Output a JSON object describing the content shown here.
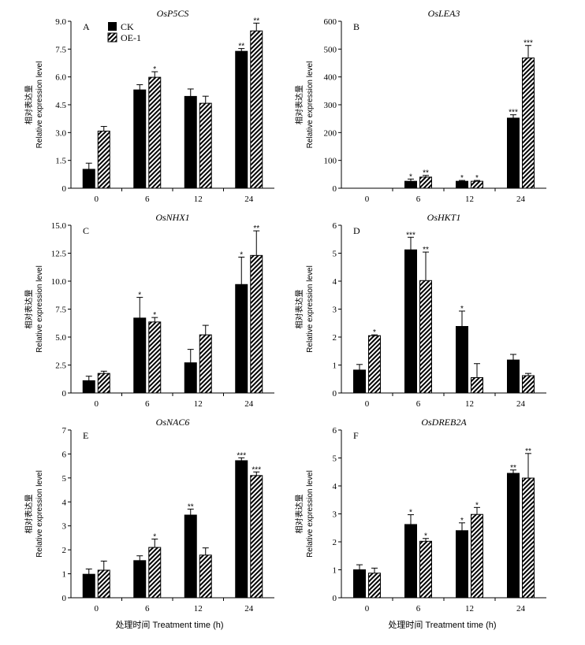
{
  "x_axis_label": "处理时间 Treatment time (h)",
  "y_axis_label_cn": "相对表达量",
  "y_axis_label_en": "Relative expression level",
  "legend": [
    "CK",
    "OE-1"
  ],
  "colors": {
    "ck": "#000000",
    "oe": "hatch"
  },
  "chart_data": [
    {
      "type": "bar",
      "panel": "A",
      "title": "OsP5CS",
      "categories": [
        "0",
        "6",
        "12",
        "24"
      ],
      "yticks": [
        "0",
        "1.5",
        "3.0",
        "4.5",
        "6.0",
        "7.5",
        "9.0"
      ],
      "ylim": [
        0,
        9
      ],
      "series": [
        {
          "name": "CK",
          "values": [
            1.02,
            5.3,
            4.95,
            7.38
          ],
          "errors": [
            0.33,
            0.28,
            0.4,
            0.15
          ],
          "sig": [
            "",
            "",
            "",
            "**"
          ]
        },
        {
          "name": "OE-1",
          "values": [
            3.08,
            5.98,
            4.58,
            8.48
          ],
          "errors": [
            0.25,
            0.3,
            0.38,
            0.42
          ],
          "sig": [
            "",
            "*",
            "",
            "**"
          ]
        }
      ]
    },
    {
      "type": "bar",
      "panel": "B",
      "title": "OsLEA3",
      "categories": [
        "0",
        "6",
        "12",
        "24"
      ],
      "yticks": [
        "0",
        "100",
        "200",
        "300",
        "400",
        "500",
        "600"
      ],
      "ylim": [
        0,
        600
      ],
      "series": [
        {
          "name": "CK",
          "values": [
            0,
            25,
            25,
            252
          ],
          "errors": [
            0,
            8,
            3,
            12
          ],
          "sig": [
            "",
            "*",
            "*",
            "***"
          ]
        },
        {
          "name": "OE-1",
          "values": [
            0,
            40,
            25,
            468
          ],
          "errors": [
            0,
            6,
            3,
            45
          ],
          "sig": [
            "",
            "**",
            "*",
            "***"
          ]
        }
      ]
    },
    {
      "type": "bar",
      "panel": "C",
      "title": "OsNHX1",
      "categories": [
        "0",
        "6",
        "12",
        "24"
      ],
      "yticks": [
        "0",
        "2.5",
        "5.0",
        "7.5",
        "10.0",
        "12.5",
        "15.0"
      ],
      "ylim": [
        0,
        15
      ],
      "series": [
        {
          "name": "CK",
          "values": [
            1.1,
            6.7,
            2.7,
            9.7
          ],
          "errors": [
            0.4,
            1.85,
            1.2,
            2.45
          ],
          "sig": [
            "",
            "*",
            "",
            "*"
          ]
        },
        {
          "name": "OE-1",
          "values": [
            1.75,
            6.35,
            5.2,
            12.3
          ],
          "errors": [
            0.2,
            0.4,
            0.85,
            2.2
          ],
          "sig": [
            "",
            "*",
            "",
            "**"
          ]
        }
      ]
    },
    {
      "type": "bar",
      "panel": "D",
      "title": "OsHKT1",
      "categories": [
        "0",
        "6",
        "12",
        "24"
      ],
      "yticks": [
        "0",
        "1",
        "2",
        "3",
        "4",
        "5",
        "6"
      ],
      "ylim": [
        0,
        6
      ],
      "series": [
        {
          "name": "CK",
          "values": [
            0.82,
            5.12,
            2.38,
            1.18
          ],
          "errors": [
            0.2,
            0.45,
            0.55,
            0.2
          ],
          "sig": [
            "",
            "***",
            "*",
            ""
          ]
        },
        {
          "name": "OE-1",
          "values": [
            2.05,
            4.02,
            0.55,
            0.62
          ],
          "errors": [
            0.03,
            1.02,
            0.5,
            0.08
          ],
          "sig": [
            "*",
            "**",
            "",
            ""
          ]
        }
      ]
    },
    {
      "type": "bar",
      "panel": "E",
      "title": "OsNAC6",
      "categories": [
        "0",
        "6",
        "12",
        "24"
      ],
      "yticks": [
        "0",
        "1",
        "2",
        "3",
        "4",
        "5",
        "6",
        "7"
      ],
      "ylim": [
        0,
        7
      ],
      "series": [
        {
          "name": "CK",
          "values": [
            0.98,
            1.55,
            3.45,
            5.72
          ],
          "errors": [
            0.22,
            0.2,
            0.25,
            0.12
          ],
          "sig": [
            "",
            "",
            "**",
            "***"
          ]
        },
        {
          "name": "OE-1",
          "values": [
            1.15,
            2.1,
            1.78,
            5.1
          ],
          "errors": [
            0.38,
            0.35,
            0.3,
            0.15
          ],
          "sig": [
            "",
            "*",
            "",
            "***"
          ]
        }
      ]
    },
    {
      "type": "bar",
      "panel": "F",
      "title": "OsDREB2A",
      "categories": [
        "0",
        "6",
        "12",
        "24"
      ],
      "yticks": [
        "0",
        "1",
        "2",
        "3",
        "4",
        "5",
        "6"
      ],
      "ylim": [
        0,
        6
      ],
      "series": [
        {
          "name": "CK",
          "values": [
            1.0,
            2.62,
            2.4,
            4.45
          ],
          "errors": [
            0.18,
            0.35,
            0.28,
            0.12
          ],
          "sig": [
            "",
            "*",
            "*",
            "**"
          ]
        },
        {
          "name": "OE-1",
          "values": [
            0.88,
            2.02,
            2.98,
            4.28
          ],
          "errors": [
            0.18,
            0.1,
            0.25,
            0.88
          ],
          "sig": [
            "",
            "*",
            "*",
            "**"
          ]
        }
      ]
    }
  ]
}
